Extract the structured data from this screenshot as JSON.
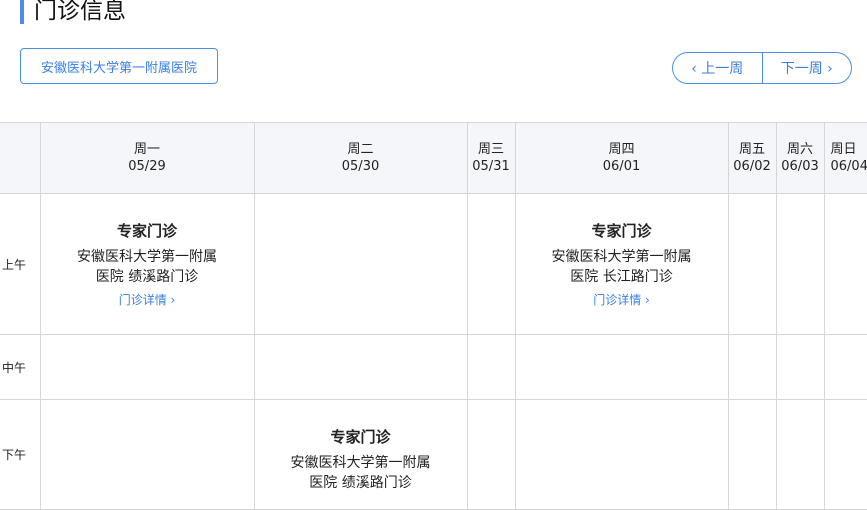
{
  "title": "门诊信息",
  "hospital_button": "安徽医科大学第一附属医院",
  "nav": {
    "prev": "‹ 上一周",
    "next": "下一周 ›"
  },
  "days": [
    {
      "day": "周一",
      "date": "05/29"
    },
    {
      "day": "周二",
      "date": "05/30"
    },
    {
      "day": "周三",
      "date": "05/31"
    },
    {
      "day": "周四",
      "date": "06/01"
    },
    {
      "day": "周五",
      "date": "06/02"
    },
    {
      "day": "周六",
      "date": "06/03"
    },
    {
      "day": "周日",
      "date": "06/04"
    }
  ],
  "periods": [
    "上午",
    "中午",
    "下午"
  ],
  "clinics": {
    "mon_am": {
      "type": "专家门诊",
      "place": "安徽医科大学第一附属医院 绩溪路门诊",
      "link": "门诊详情 ›"
    },
    "thu_am": {
      "type": "专家门诊",
      "place": "安徽医科大学第一附属医院 长江路门诊",
      "link": "门诊详情 ›"
    },
    "tue_pm": {
      "type": "专家门诊",
      "place": "安徽医科大学第一附属医院 绩溪路门诊"
    }
  }
}
